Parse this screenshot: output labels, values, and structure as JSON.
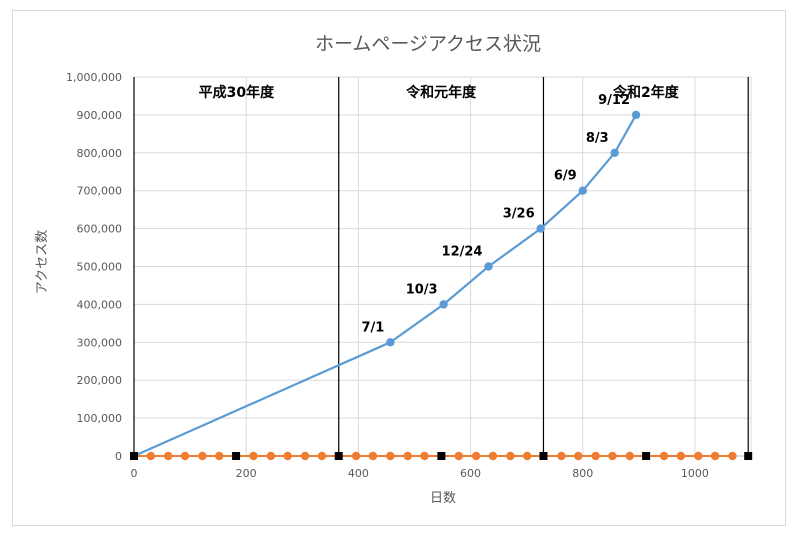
{
  "chart_data": {
    "type": "line",
    "title": "ホームページアクセス状況",
    "xlabel": "日数",
    "ylabel": "アクセス数",
    "xlim": [
      0,
      1100
    ],
    "ylim": [
      0,
      1000000
    ],
    "x_ticks": [
      0,
      200,
      400,
      600,
      800,
      1000
    ],
    "x_tick_labels": [
      "0",
      "200",
      "400",
      "600",
      "800",
      "1000"
    ],
    "y_ticks": [
      0,
      100000,
      200000,
      300000,
      400000,
      500000,
      600000,
      700000,
      800000,
      900000,
      1000000
    ],
    "y_tick_labels": [
      "0",
      "100,000",
      "200,000",
      "300,000",
      "400,000",
      "500,000",
      "600,000",
      "700,000",
      "800,000",
      "900,000",
      "1,000,000"
    ],
    "grid": true,
    "series": [
      {
        "color": "#5b9bd5",
        "x": [
          0,
          457,
          552,
          632,
          725,
          800,
          857,
          895
        ],
        "y": [
          0,
          300000,
          400000,
          500000,
          600000,
          700000,
          800000,
          900000
        ],
        "point_labels": [
          "",
          "7/1",
          "10/3",
          "12/24",
          "3/26",
          "6/9",
          "8/3",
          "9/12"
        ],
        "markers_on": [
          false,
          true,
          true,
          true,
          true,
          true,
          true,
          true
        ]
      },
      {
        "color": "#ed7d31",
        "x": [
          30,
          61,
          91,
          122,
          152,
          213,
          244,
          274,
          305,
          335,
          396,
          426,
          457,
          488,
          518,
          579,
          610,
          640,
          671,
          701,
          762,
          792,
          823,
          853,
          884,
          945,
          975,
          1006,
          1036,
          1067
        ],
        "y": [
          0,
          0,
          0,
          0,
          0,
          0,
          0,
          0,
          0,
          0,
          0,
          0,
          0,
          0,
          0,
          0,
          0,
          0,
          0,
          0,
          0,
          0,
          0,
          0,
          0,
          0,
          0,
          0,
          0,
          0
        ]
      },
      {
        "color": "#000000",
        "x": [
          0,
          182,
          365,
          548,
          730,
          913,
          1095
        ],
        "y": [
          0,
          0,
          0,
          0,
          0,
          0,
          0
        ]
      }
    ],
    "period_lines_x": [
      0,
      365,
      730,
      1095
    ],
    "period_labels": [
      "平成30年度",
      "令和元年度",
      "令和2年度"
    ]
  }
}
